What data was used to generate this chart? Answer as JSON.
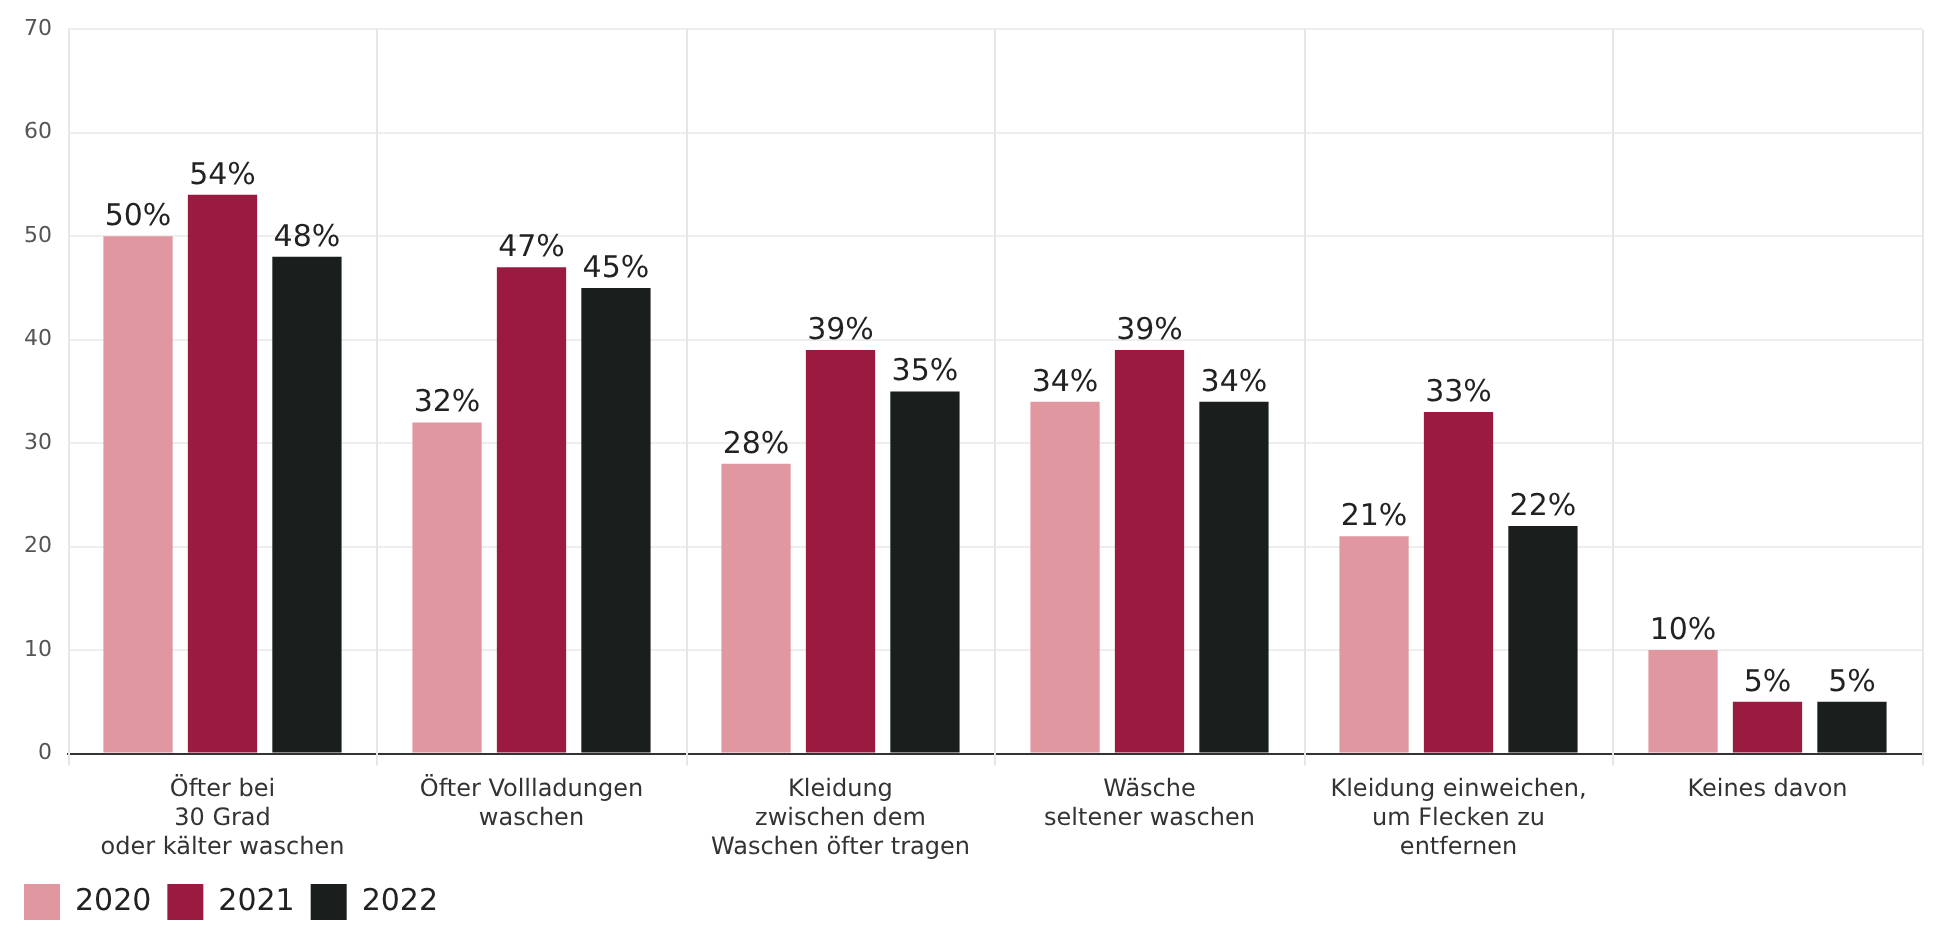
{
  "chart_data": {
    "type": "bar",
    "categories": [
      "Öfter bei\n30 Grad\noder kälter waschen",
      "Öfter Vollladungen\nwaschen",
      "Kleidung\nzwischen dem\nWaschen öfter tragen",
      "Wäsche\nseltener waschen",
      "Kleidung einweichen,\num Flecken zu\nentfernen",
      "Keines davon"
    ],
    "series": [
      {
        "name": "2020",
        "color": "#e0979f",
        "values": [
          50,
          32,
          28,
          34,
          21,
          10
        ],
        "value_labels": [
          "50%",
          "32%",
          "28%",
          "34%",
          "21%",
          "10%"
        ]
      },
      {
        "name": "2021",
        "color": "#9b1b40",
        "values": [
          54,
          47,
          39,
          39,
          33,
          5
        ],
        "value_labels": [
          "54%",
          "47%",
          "39%",
          "39%",
          "33%",
          "5%"
        ]
      },
      {
        "name": "2022",
        "color": "#1a1f1e",
        "values": [
          48,
          45,
          35,
          34,
          22,
          5
        ],
        "value_labels": [
          "48%",
          "45%",
          "35%",
          "34%",
          "22%",
          "5%"
        ]
      }
    ],
    "ylim": [
      0,
      70
    ],
    "yticks": [
      0,
      10,
      20,
      30,
      40,
      50,
      60,
      70
    ],
    "grid": true,
    "legend": "bottom left"
  }
}
